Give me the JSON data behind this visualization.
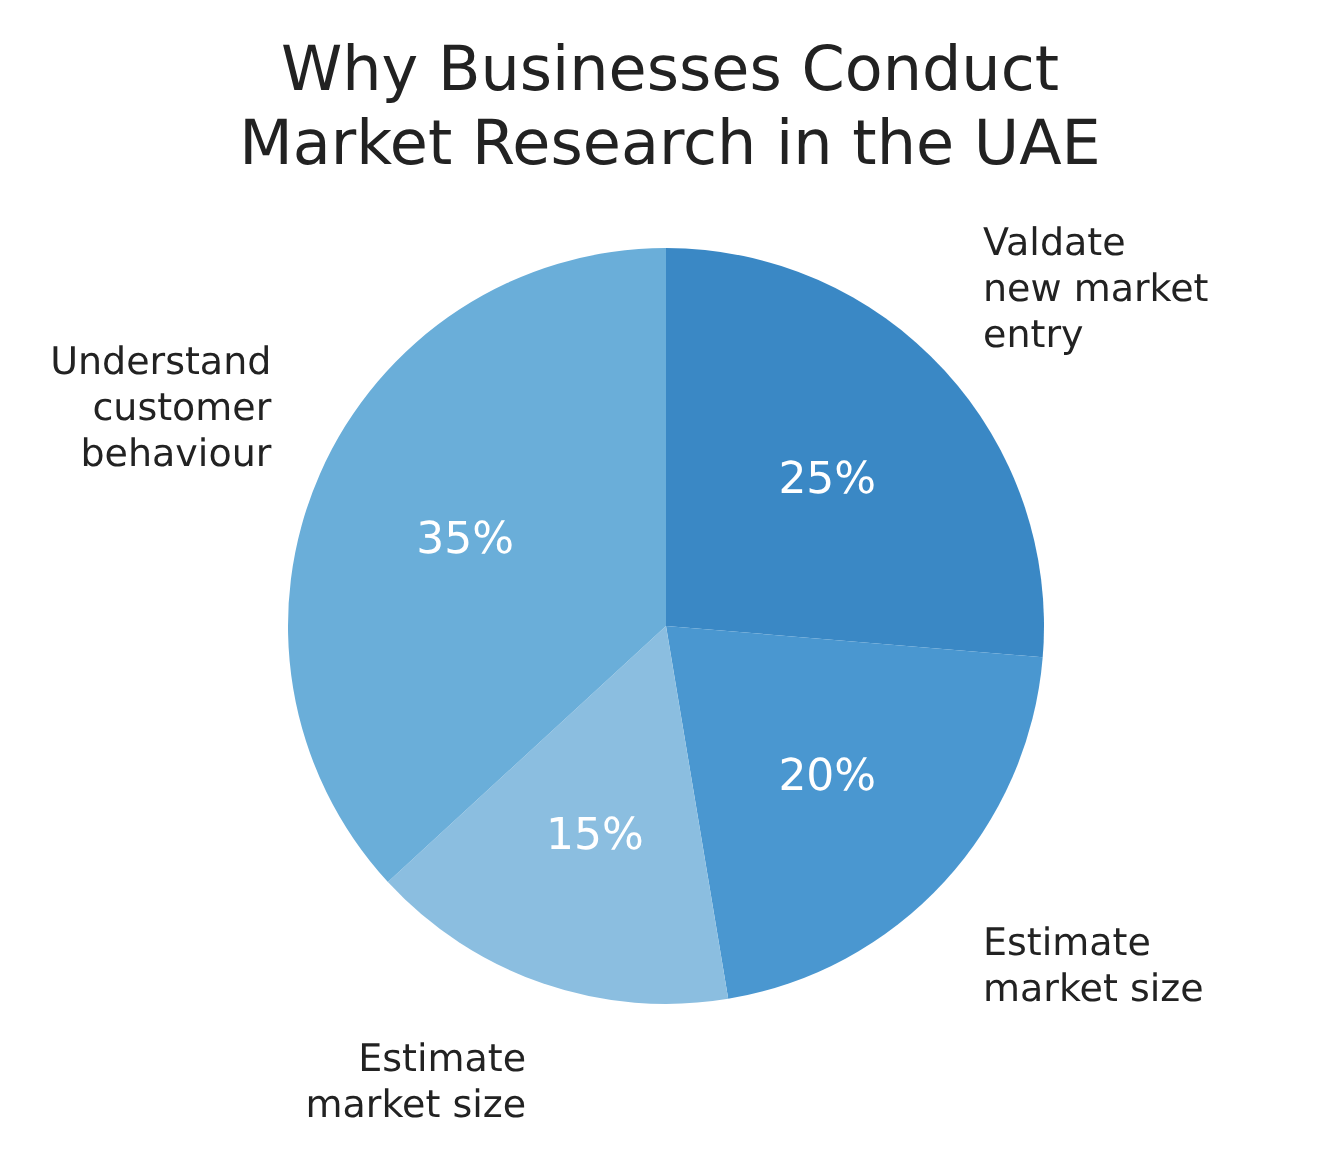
{
  "chart_data": {
    "type": "pie",
    "title": "Why Businesses Conduct\nMarket Research in the UAE",
    "categories": [
      "Valdate\nnew market\nentry",
      "Estimate\nmarket size",
      "Estimate\nmarket size",
      "Understand\ncustomer\nbehaviour"
    ],
    "values": [
      25,
      20,
      15,
      35
    ],
    "colors": [
      "#3a88c5",
      "#4a97d0",
      "#8bbee0",
      "#6aaed9"
    ],
    "value_labels": [
      "25%",
      "20%",
      "15%",
      "35%"
    ]
  }
}
